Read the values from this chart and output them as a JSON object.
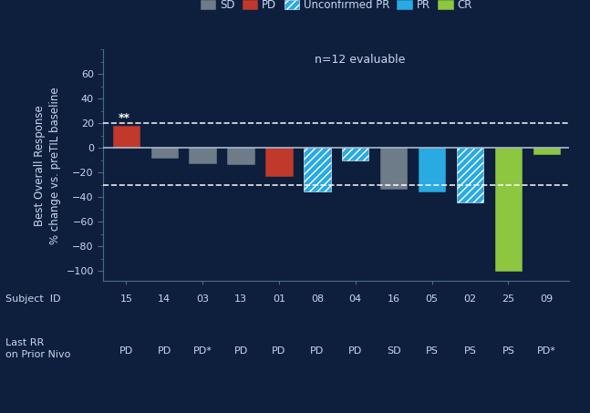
{
  "background_color": "#0d1f3c",
  "plot_bg_color": "#0d1f3c",
  "text_color": "#c8d8f0",
  "subjects": [
    "15",
    "14",
    "03",
    "13",
    "01",
    "08",
    "04",
    "16",
    "05",
    "02",
    "25",
    "09"
  ],
  "values": [
    18,
    -8,
    -12,
    -13,
    -23,
    -35,
    -10,
    -33,
    -35,
    -44,
    -100,
    -5
  ],
  "response_types": [
    "PD",
    "SD",
    "SD",
    "SD",
    "PD",
    "Unconfirmed PR",
    "Unconfirmed PR",
    "SD",
    "PR",
    "Unconfirmed PR",
    "CR",
    "CR"
  ],
  "last_rr": [
    "PD",
    "PD",
    "PD*",
    "PD",
    "PD",
    "PD",
    "PD",
    "SD",
    "PS",
    "PS",
    "PS",
    "PD*"
  ],
  "colors": {
    "SD": "#6e7c8a",
    "PD": "#c0392b",
    "Unconfirmed PR": "#29aae2",
    "PR": "#29aae2",
    "CR": "#8dc63f"
  },
  "hatch_types": {
    "SD": "",
    "PD": "",
    "Unconfirmed PR": "////",
    "PR": "",
    "CR": ""
  },
  "dashed_lines": [
    20,
    -30
  ],
  "ylim": [
    -108,
    80
  ],
  "yticks": [
    -100,
    -80,
    -60,
    -40,
    -20,
    0,
    20,
    40,
    60
  ],
  "ylabel": "Best Overall Response\n% change vs. preTIL baseline",
  "n_label": "n=12 evaluable",
  "legend_items": [
    {
      "label": "SD",
      "color": "#6e7c8a",
      "hatch": ""
    },
    {
      "label": "PD",
      "color": "#c0392b",
      "hatch": ""
    },
    {
      "label": "Unconfirmed PR",
      "color": "#29aae2",
      "hatch": "////"
    },
    {
      "label": "PR",
      "color": "#29aae2",
      "hatch": ""
    },
    {
      "label": "CR",
      "color": "#8dc63f",
      "hatch": ""
    }
  ],
  "star_annotation": "**",
  "subject_id_label": "Subject  ID",
  "last_rr_label": "Last RR\non Prior Nivo"
}
